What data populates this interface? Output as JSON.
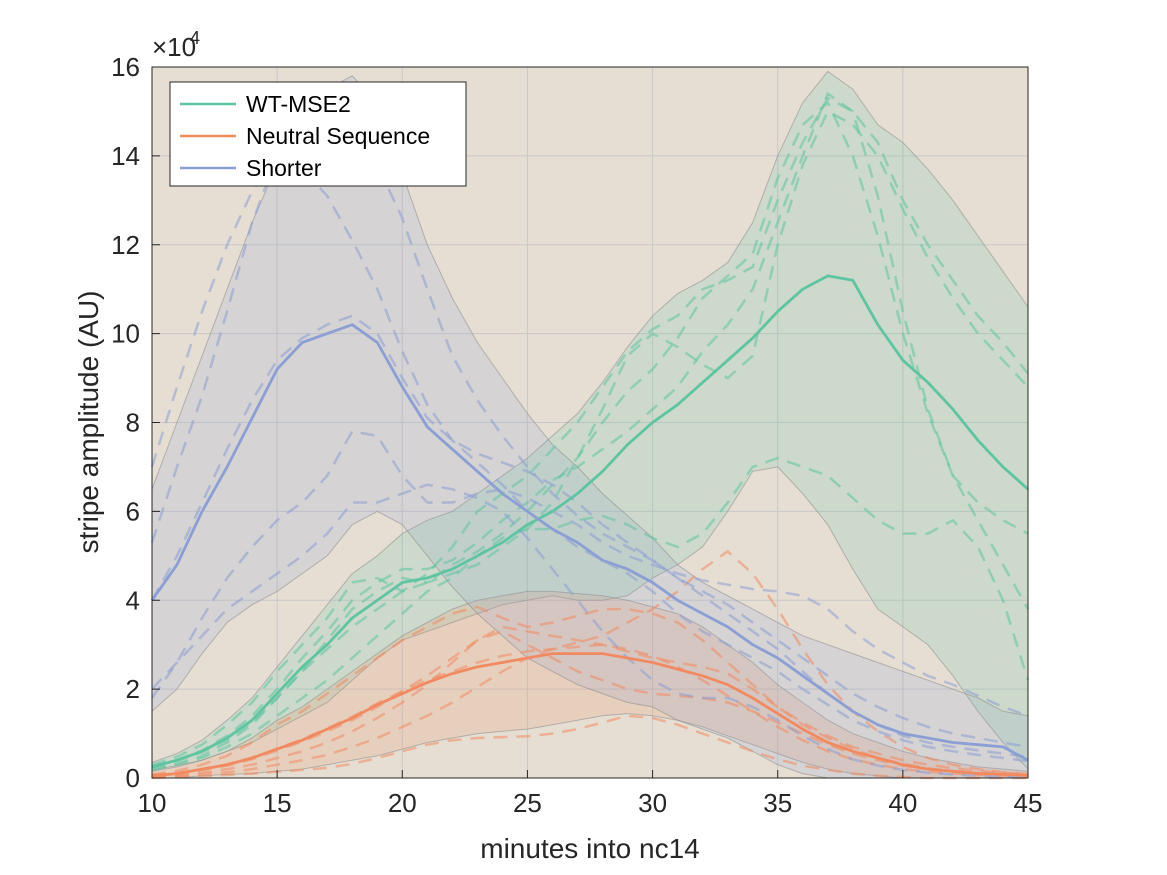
{
  "colors": {
    "background": "#e6ded3",
    "WT-MSE2": "#5ec4a1",
    "Neutral Sequence": "#f18a61",
    "Shorter": "#8b9fd4",
    "grid": "#c8c8c8",
    "band_edge": "#8a8a8a"
  },
  "chart_data": {
    "type": "line",
    "xlabel": "minutes into nc14",
    "ylabel": "stripe amplitude (AU)",
    "y_multiplier_label": "×10",
    "y_multiplier_exponent": "4",
    "xlim": [
      10,
      45
    ],
    "ylim": [
      0,
      160000
    ],
    "xticks": [
      10,
      15,
      20,
      25,
      30,
      35,
      40,
      45
    ],
    "yticks": [
      0,
      20000,
      40000,
      60000,
      80000,
      100000,
      120000,
      140000,
      160000
    ],
    "ytick_labels": [
      "0",
      "2",
      "4",
      "6",
      "8",
      "10",
      "12",
      "14",
      "16"
    ],
    "grid": true,
    "legend_position": "top-left",
    "series": [
      {
        "name": "WT-MSE2",
        "x": [
          10,
          11,
          12,
          13,
          14,
          15,
          16,
          17,
          18,
          19,
          20,
          21,
          22,
          23,
          24,
          25,
          26,
          27,
          28,
          29,
          30,
          31,
          32,
          33,
          34,
          35,
          36,
          37,
          38,
          39,
          40,
          41,
          42,
          43,
          44,
          45
        ],
        "mean": [
          2500,
          4000,
          6000,
          9000,
          13000,
          19000,
          25000,
          30000,
          36000,
          40000,
          44000,
          45000,
          47000,
          50000,
          53000,
          57000,
          60000,
          64000,
          69000,
          75000,
          80000,
          84000,
          89000,
          94000,
          99000,
          105000,
          110000,
          113000,
          112000,
          102000,
          94000,
          89000,
          83000,
          76000,
          70000,
          65000
        ],
        "upper": [
          3500,
          5500,
          8500,
          13000,
          18000,
          25000,
          32000,
          39000,
          46000,
          50000,
          55000,
          58000,
          60000,
          64000,
          68000,
          72000,
          77000,
          82000,
          89000,
          97000,
          104000,
          109000,
          112000,
          116000,
          125000,
          140000,
          152000,
          159000,
          155000,
          147000,
          143000,
          137000,
          130000,
          122000,
          114000,
          106000
        ],
        "lower": [
          1800,
          2800,
          4000,
          6000,
          8000,
          11000,
          14000,
          17000,
          22000,
          27000,
          31000,
          33000,
          35000,
          37000,
          39000,
          40000,
          41000,
          40000,
          40000,
          41000,
          45000,
          48000,
          52000,
          60000,
          69000,
          70000,
          64000,
          57000,
          47000,
          38000,
          34000,
          30000,
          23000,
          15000,
          8000,
          2000
        ],
        "replicates": [
          [
            3000,
            4800,
            7500,
            12000,
            17000,
            24000,
            30000,
            36000,
            44000,
            45000,
            42000,
            46000,
            52000,
            60000,
            64000,
            68000,
            74000,
            80000,
            88000,
            96000,
            101000,
            104000,
            110000,
            112000,
            115000,
            130000,
            143000,
            153000,
            150000,
            143000,
            130000,
            120000,
            112000,
            104000,
            98000,
            91000
          ],
          [
            2000,
            3200,
            5000,
            8000,
            12000,
            18000,
            24000,
            31000,
            38000,
            42000,
            45000,
            44000,
            46000,
            48000,
            52000,
            56000,
            62000,
            72000,
            83000,
            95000,
            100000,
            97000,
            93000,
            90000,
            95000,
            120000,
            138000,
            150000,
            147000,
            140000,
            128000,
            117000,
            108000,
            100000,
            94000,
            88000
          ],
          [
            2600,
            4100,
            6200,
            9500,
            14000,
            20000,
            27000,
            33000,
            40000,
            44000,
            47000,
            47000,
            49000,
            53000,
            58000,
            62000,
            67000,
            70000,
            74000,
            78000,
            83000,
            88000,
            96000,
            102000,
            110000,
            125000,
            140000,
            154000,
            150000,
            131000,
            105000,
            83000,
            68000,
            62000,
            58000,
            55000
          ],
          [
            1800,
            3000,
            4500,
            7000,
            10000,
            14000,
            18000,
            22000,
            27000,
            32000,
            37000,
            42000,
            45000,
            50000,
            54000,
            56000,
            56000,
            58000,
            59000,
            57000,
            54000,
            52000,
            55000,
            62000,
            70000,
            72000,
            70000,
            68000,
            63000,
            58000,
            55000,
            55000,
            58000,
            52000,
            40000,
            22000
          ],
          [
            2400,
            3800,
            5800,
            8600,
            12500,
            18000,
            24000,
            29000,
            34000,
            38000,
            42000,
            44000,
            48000,
            51000,
            55000,
            60000,
            66000,
            72000,
            80000,
            87000,
            92000,
            99000,
            108000,
            113000,
            118000,
            135000,
            147000,
            152000,
            140000,
            122000,
            100000,
            82000,
            68000,
            58000,
            48000,
            38000
          ]
        ]
      },
      {
        "name": "Neutral Sequence",
        "x": [
          10,
          11,
          12,
          13,
          14,
          15,
          16,
          17,
          18,
          19,
          20,
          21,
          22,
          23,
          24,
          25,
          26,
          27,
          28,
          29,
          30,
          31,
          32,
          33,
          34,
          35,
          36,
          37,
          38,
          39,
          40,
          41,
          42,
          43,
          44,
          45
        ],
        "mean": [
          500,
          1000,
          2000,
          3000,
          4500,
          6500,
          8500,
          11000,
          13500,
          16500,
          19000,
          21500,
          23500,
          25000,
          26000,
          27000,
          28000,
          28000,
          28000,
          27000,
          26000,
          24500,
          23000,
          21000,
          18000,
          14500,
          11000,
          8000,
          6000,
          4500,
          3000,
          2000,
          1500,
          1000,
          800,
          600
        ],
        "upper": [
          1500,
          2500,
          4000,
          6000,
          9000,
          13000,
          16000,
          20000,
          24000,
          28000,
          32000,
          35000,
          38000,
          40000,
          41000,
          42000,
          42000,
          41500,
          41000,
          40000,
          38500,
          37000,
          34000,
          30000,
          26000,
          21000,
          17000,
          13000,
          10000,
          8000,
          6000,
          4500,
          3500,
          2500,
          2000,
          1500
        ],
        "lower": [
          0,
          0,
          500,
          800,
          1000,
          1500,
          2000,
          3000,
          4000,
          5000,
          6500,
          8000,
          9000,
          10000,
          10500,
          11000,
          12000,
          13000,
          14000,
          14500,
          14000,
          13000,
          11500,
          9500,
          7500,
          5500,
          3500,
          2000,
          1000,
          500,
          0,
          0,
          0,
          0,
          0,
          0
        ],
        "replicates": [
          [
            800,
            1600,
            3000,
            5000,
            8000,
            12000,
            15000,
            19000,
            23000,
            27000,
            31000,
            34000,
            37000,
            38500,
            36000,
            34000,
            35000,
            36500,
            38000,
            38000,
            37000,
            35000,
            31000,
            26000,
            21000,
            16000,
            12000,
            9000,
            6500,
            4500,
            3200,
            2200,
            1500,
            1100,
            800,
            600
          ],
          [
            300,
            600,
            1200,
            2000,
            3000,
            4500,
            6000,
            8000,
            10500,
            13500,
            17000,
            21000,
            26000,
            31000,
            34000,
            33000,
            32000,
            31000,
            30000,
            28500,
            27000,
            26000,
            25000,
            23500,
            20000,
            16000,
            12500,
            9500,
            7000,
            5500,
            4000,
            3000,
            2200,
            1600,
            1200,
            900
          ],
          [
            200,
            400,
            800,
            1300,
            2000,
            3000,
            4000,
            5200,
            7000,
            9000,
            11500,
            14000,
            17000,
            20500,
            24000,
            27000,
            29000,
            30500,
            32000,
            35000,
            38000,
            42000,
            47000,
            51000,
            46000,
            38000,
            29000,
            21000,
            15000,
            10500,
            7000,
            4500,
            3000,
            2000,
            1300,
            900
          ],
          [
            400,
            900,
            1800,
            2800,
            4200,
            6200,
            8200,
            10500,
            13000,
            16000,
            19500,
            23000,
            27000,
            31000,
            33000,
            30000,
            27000,
            24000,
            22000,
            20000,
            19000,
            18500,
            18000,
            17000,
            15000,
            12500,
            10000,
            7500,
            5500,
            4000,
            2800,
            2000,
            1500,
            1100,
            800,
            600
          ],
          [
            600,
            1100,
            2000,
            3100,
            4600,
            6600,
            8700,
            11200,
            13800,
            16800,
            19500,
            22000,
            24000,
            26000,
            27500,
            28500,
            29000,
            29500,
            30000,
            29000,
            27500,
            25000,
            22000,
            18500,
            15000,
            11500,
            8500,
            6000,
            4200,
            3000,
            2000,
            1400,
            1000,
            700,
            500,
            400
          ],
          [
            0,
            200,
            400,
            700,
            1000,
            1400,
            1800,
            2300,
            3200,
            4500,
            6000,
            7500,
            8500,
            9000,
            9200,
            9400,
            10000,
            11000,
            12500,
            14000,
            13500,
            12000,
            10000,
            8000,
            6000,
            4200,
            2800,
            1800,
            1000,
            500,
            200,
            0,
            0,
            0,
            0,
            0
          ]
        ]
      },
      {
        "name": "Shorter",
        "x": [
          10,
          11,
          12,
          13,
          14,
          15,
          16,
          17,
          18,
          19,
          20,
          21,
          22,
          23,
          24,
          25,
          26,
          27,
          28,
          29,
          30,
          31,
          32,
          33,
          34,
          35,
          36,
          37,
          38,
          39,
          40,
          41,
          42,
          43,
          44,
          45
        ],
        "mean": [
          40000,
          48000,
          60000,
          70000,
          81000,
          92000,
          98000,
          100000,
          102000,
          98000,
          88000,
          79000,
          74000,
          69000,
          64000,
          60000,
          56000,
          53000,
          49000,
          47000,
          44000,
          40000,
          37000,
          34000,
          30000,
          27000,
          23000,
          19000,
          15000,
          12000,
          10000,
          9000,
          8000,
          7500,
          7000,
          4000
        ],
        "upper": [
          65000,
          80000,
          95000,
          110000,
          125000,
          138000,
          148000,
          155000,
          158000,
          152000,
          136000,
          120000,
          108000,
          98000,
          90000,
          82000,
          75000,
          70000,
          64000,
          59000,
          54000,
          48000,
          44000,
          41000,
          38000,
          35000,
          32000,
          30000,
          28000,
          26000,
          24000,
          22000,
          20000,
          18000,
          15000,
          14000
        ],
        "lower": [
          15000,
          20000,
          28000,
          35000,
          39000,
          42000,
          46000,
          50000,
          57000,
          60000,
          57000,
          50000,
          43000,
          37000,
          32000,
          27000,
          24000,
          21000,
          19000,
          17000,
          16000,
          13000,
          11000,
          9000,
          6000,
          3000,
          1000,
          0,
          0,
          0,
          0,
          0,
          0,
          0,
          0,
          0
        ],
        "replicates": [
          [
            70000,
            88000,
            105000,
            120000,
            132000,
            140000,
            137000,
            131000,
            121000,
            110000,
            96000,
            84000,
            76000,
            71000,
            66000,
            60000,
            56000,
            52000,
            49000,
            46000,
            42000,
            37000,
            33000,
            30000,
            27000,
            24000,
            20000,
            16500,
            13000,
            10500,
            8500,
            7000,
            6000,
            5200,
            4500,
            3800
          ],
          [
            53000,
            70000,
            86000,
            105000,
            125000,
            140000,
            145000,
            143000,
            138000,
            138000,
            126000,
            110000,
            95000,
            85000,
            77000,
            70000,
            64000,
            59000,
            55000,
            52000,
            49000,
            45000,
            42000,
            39000,
            35000,
            31000,
            27000,
            23000,
            19000,
            16000,
            13500,
            11500,
            10000,
            9000,
            8000,
            7000
          ],
          [
            18000,
            26000,
            36000,
            45000,
            52000,
            58000,
            62000,
            68000,
            78000,
            77000,
            68000,
            62000,
            62000,
            64000,
            65000,
            63000,
            60000,
            57000,
            53000,
            50000,
            48000,
            46000,
            44500,
            43500,
            42500,
            42000,
            41000,
            38000,
            33000,
            29000,
            26000,
            23000,
            21000,
            18500,
            16000,
            14000
          ],
          [
            20000,
            26000,
            32000,
            38000,
            42000,
            46000,
            50000,
            55000,
            62000,
            62000,
            64000,
            66000,
            65000,
            63000,
            60000,
            54000,
            47000,
            40000,
            33000,
            27000,
            22000,
            19000,
            18000,
            18000,
            16000,
            13000,
            9500,
            6500,
            4200,
            2800,
            1800,
            1200,
            800,
            500,
            300,
            200
          ],
          [
            40000,
            50000,
            62000,
            74000,
            85000,
            94000,
            99000,
            102000,
            104000,
            100000,
            90000,
            81000,
            76000,
            73000,
            71000,
            69000,
            66000,
            62000,
            57000,
            53000,
            49000,
            45000,
            41000,
            37000,
            33000,
            29000,
            24000,
            19000,
            15000,
            12000,
            9500,
            8000,
            7000,
            6200,
            5500,
            4800
          ]
        ]
      }
    ]
  }
}
